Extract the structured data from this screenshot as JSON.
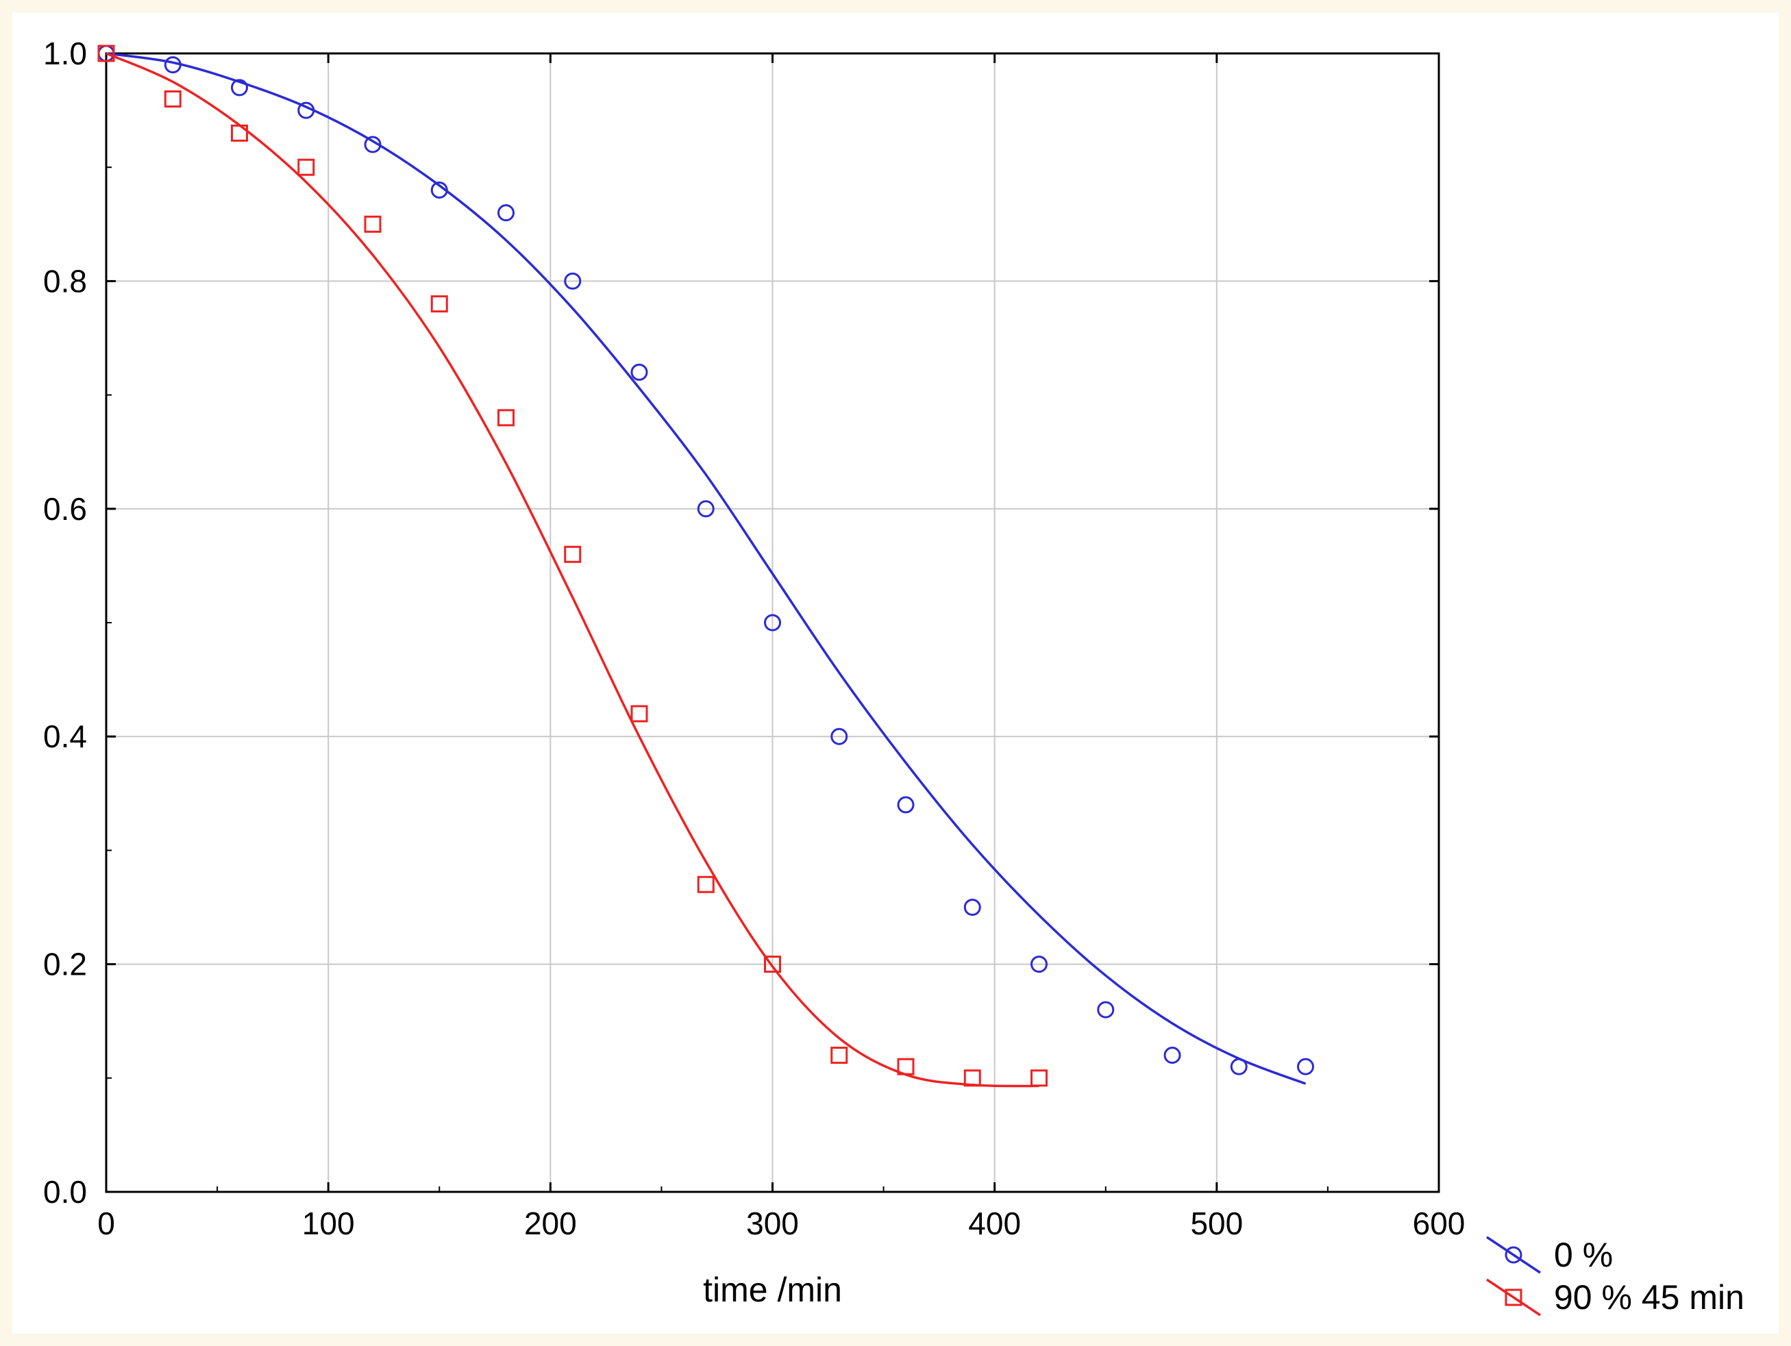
{
  "colors": {
    "background": "#fdf7ea",
    "plot_background": "#ffffff",
    "grid": "#c8c8c8",
    "axis": "#000000"
  },
  "chart_data": {
    "type": "scatter",
    "title": "",
    "xlabel": "time /min",
    "ylabel": "",
    "xlim": [
      0,
      600
    ],
    "ylim": [
      0,
      1.0
    ],
    "xticks": [
      0,
      100,
      200,
      300,
      400,
      500,
      600
    ],
    "yticks": [
      0.0,
      0.2,
      0.4,
      0.6,
      0.8,
      1.0
    ],
    "xtick_labels": [
      "0",
      "100",
      "200",
      "300",
      "400",
      "500",
      "600"
    ],
    "ytick_labels": [
      "0.0",
      "0.2",
      "0.4",
      "0.6",
      "0.8",
      "1.0"
    ],
    "grid": true,
    "legend_position": "bottom-right",
    "series": [
      {
        "name": "0 %",
        "color": "#2b2bd6",
        "marker": "circle",
        "x": [
          0,
          30,
          60,
          90,
          120,
          150,
          180,
          210,
          240,
          270,
          300,
          330,
          360,
          390,
          420,
          450,
          480,
          510,
          540
        ],
        "y": [
          1.0,
          0.99,
          0.97,
          0.95,
          0.92,
          0.88,
          0.86,
          0.8,
          0.72,
          0.6,
          0.5,
          0.4,
          0.34,
          0.25,
          0.2,
          0.16,
          0.12,
          0.11,
          0.11
        ],
        "fit_x": [
          0,
          30,
          60,
          90,
          120,
          150,
          180,
          210,
          240,
          270,
          300,
          330,
          360,
          390,
          420,
          450,
          480,
          510,
          540
        ],
        "fit_y": [
          1.0,
          0.992,
          0.975,
          0.953,
          0.923,
          0.884,
          0.836,
          0.776,
          0.706,
          0.63,
          0.543,
          0.456,
          0.377,
          0.305,
          0.243,
          0.19,
          0.148,
          0.117,
          0.095
        ]
      },
      {
        "name": "90 % 45 min",
        "color": "#ee2222",
        "marker": "square",
        "x": [
          0,
          30,
          60,
          90,
          120,
          150,
          180,
          210,
          240,
          270,
          300,
          330,
          360,
          390,
          420
        ],
        "y": [
          1.0,
          0.96,
          0.93,
          0.9,
          0.85,
          0.78,
          0.68,
          0.56,
          0.42,
          0.27,
          0.2,
          0.12,
          0.11,
          0.1,
          0.1
        ],
        "fit_x": [
          0,
          30,
          60,
          90,
          120,
          150,
          180,
          210,
          240,
          270,
          300,
          330,
          360,
          390,
          420
        ],
        "fit_y": [
          1.0,
          0.975,
          0.937,
          0.887,
          0.823,
          0.742,
          0.64,
          0.522,
          0.4,
          0.29,
          0.198,
          0.135,
          0.103,
          0.094,
          0.093
        ]
      }
    ]
  }
}
